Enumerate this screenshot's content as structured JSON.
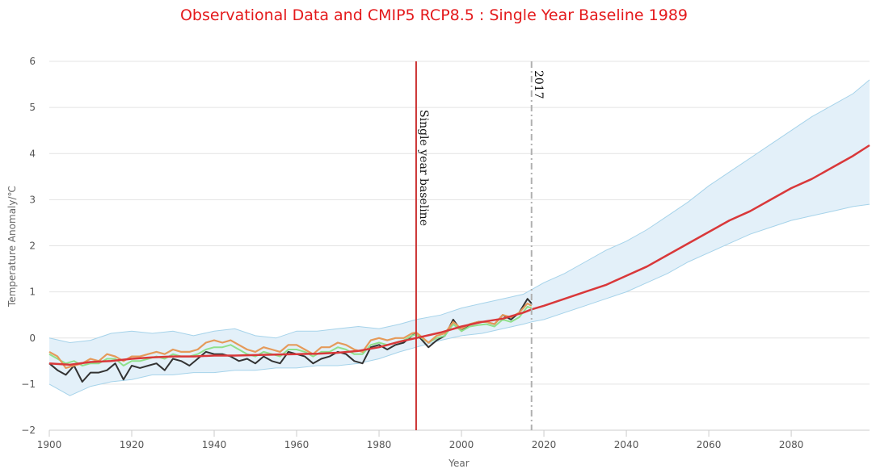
{
  "chart_data": {
    "type": "line",
    "title": "Observational Data and CMIP5 RCP8.5 : Single Year Baseline 1989",
    "xlabel": "Year",
    "ylabel": "Temperature Anomaly/℃",
    "xlim": [
      1900,
      2099
    ],
    "ylim": [
      -2,
      6
    ],
    "x_ticks": [
      "1900",
      "1920",
      "1940",
      "1960",
      "1980",
      "2000",
      "2020",
      "2040",
      "2060",
      "2080"
    ],
    "y_ticks": [
      "−2",
      "−1",
      "0",
      "1",
      "2",
      "3",
      "4",
      "5",
      "6"
    ],
    "grid": "horizontal",
    "legend": "none",
    "colors": {
      "title": "#e41a1c",
      "model_mean": "#d9383a",
      "model_range_fill": "#e3f0f9",
      "model_range_edge": "#a6d3ea",
      "obs_dark": "#333333",
      "obs_green": "#8fe08a",
      "obs_orange": "#e59a5a",
      "baseline_line": "#cc3333",
      "year_line": "#b0b0b0"
    },
    "annotations": {
      "baseline": {
        "x": 1989,
        "label": "Single year baseline"
      },
      "current_year": {
        "x": 2017,
        "label": "2017"
      }
    },
    "series": [
      {
        "role": "model-mean",
        "x": [
          1900,
          1905,
          1910,
          1915,
          1920,
          1925,
          1930,
          1935,
          1940,
          1945,
          1950,
          1955,
          1960,
          1965,
          1970,
          1975,
          1980,
          1985,
          1989,
          1995,
          2000,
          2005,
          2010,
          2015,
          2017,
          2020,
          2025,
          2030,
          2035,
          2040,
          2045,
          2050,
          2055,
          2060,
          2065,
          2070,
          2075,
          2080,
          2085,
          2090,
          2095,
          2099
        ],
        "y": [
          -0.55,
          -0.58,
          -0.52,
          -0.5,
          -0.45,
          -0.42,
          -0.4,
          -0.4,
          -0.38,
          -0.38,
          -0.37,
          -0.36,
          -0.35,
          -0.34,
          -0.32,
          -0.28,
          -0.2,
          -0.08,
          0.0,
          0.12,
          0.25,
          0.35,
          0.42,
          0.55,
          0.62,
          0.7,
          0.85,
          1.0,
          1.15,
          1.35,
          1.55,
          1.8,
          2.05,
          2.3,
          2.55,
          2.75,
          3.0,
          3.25,
          3.45,
          3.7,
          3.95,
          4.18
        ]
      },
      {
        "role": "model-range-upper",
        "x": [
          1900,
          1905,
          1910,
          1915,
          1920,
          1925,
          1930,
          1935,
          1940,
          1945,
          1950,
          1955,
          1960,
          1965,
          1970,
          1975,
          1980,
          1985,
          1989,
          1995,
          2000,
          2005,
          2010,
          2015,
          2017,
          2020,
          2025,
          2030,
          2035,
          2040,
          2045,
          2050,
          2055,
          2060,
          2065,
          2070,
          2075,
          2080,
          2085,
          2090,
          2095,
          2099
        ],
        "y": [
          0.0,
          -0.1,
          -0.05,
          0.1,
          0.15,
          0.1,
          0.15,
          0.05,
          0.15,
          0.2,
          0.05,
          0.0,
          0.15,
          0.15,
          0.2,
          0.25,
          0.2,
          0.3,
          0.4,
          0.5,
          0.65,
          0.75,
          0.85,
          0.95,
          1.05,
          1.2,
          1.4,
          1.65,
          1.9,
          2.1,
          2.35,
          2.65,
          2.95,
          3.3,
          3.6,
          3.9,
          4.2,
          4.5,
          4.8,
          5.05,
          5.3,
          5.6
        ]
      },
      {
        "role": "model-range-lower",
        "x": [
          1900,
          1905,
          1910,
          1915,
          1920,
          1925,
          1930,
          1935,
          1940,
          1945,
          1950,
          1955,
          1960,
          1965,
          1970,
          1975,
          1980,
          1985,
          1989,
          1995,
          2000,
          2005,
          2010,
          2015,
          2017,
          2020,
          2025,
          2030,
          2035,
          2040,
          2045,
          2050,
          2055,
          2060,
          2065,
          2070,
          2075,
          2080,
          2085,
          2090,
          2095,
          2099
        ],
        "y": [
          -1.0,
          -1.25,
          -1.05,
          -0.95,
          -0.9,
          -0.8,
          -0.8,
          -0.75,
          -0.75,
          -0.7,
          -0.7,
          -0.65,
          -0.65,
          -0.6,
          -0.6,
          -0.55,
          -0.45,
          -0.3,
          -0.2,
          -0.05,
          0.05,
          0.1,
          0.2,
          0.3,
          0.35,
          0.4,
          0.55,
          0.7,
          0.85,
          1.0,
          1.2,
          1.4,
          1.65,
          1.85,
          2.05,
          2.25,
          2.4,
          2.55,
          2.65,
          2.75,
          2.85,
          2.9
        ]
      },
      {
        "role": "observations-dark",
        "x": [
          1900,
          1902,
          1904,
          1906,
          1908,
          1910,
          1912,
          1914,
          1916,
          1918,
          1920,
          1922,
          1924,
          1926,
          1928,
          1930,
          1932,
          1934,
          1936,
          1938,
          1940,
          1942,
          1944,
          1946,
          1948,
          1950,
          1952,
          1954,
          1956,
          1958,
          1960,
          1962,
          1964,
          1966,
          1968,
          1970,
          1972,
          1974,
          1976,
          1978,
          1980,
          1982,
          1984,
          1986,
          1988,
          1989,
          1990,
          1992,
          1994,
          1996,
          1998,
          2000,
          2002,
          2004,
          2006,
          2008,
          2010,
          2012,
          2014,
          2016,
          2017
        ],
        "y": [
          -0.55,
          -0.7,
          -0.8,
          -0.6,
          -0.95,
          -0.75,
          -0.75,
          -0.7,
          -0.55,
          -0.9,
          -0.6,
          -0.65,
          -0.6,
          -0.55,
          -0.7,
          -0.45,
          -0.5,
          -0.6,
          -0.45,
          -0.3,
          -0.35,
          -0.35,
          -0.4,
          -0.5,
          -0.45,
          -0.55,
          -0.4,
          -0.5,
          -0.55,
          -0.3,
          -0.35,
          -0.4,
          -0.55,
          -0.45,
          -0.4,
          -0.3,
          -0.35,
          -0.5,
          -0.55,
          -0.2,
          -0.15,
          -0.25,
          -0.15,
          -0.1,
          0.05,
          0.1,
          0.0,
          -0.2,
          -0.05,
          0.05,
          0.4,
          0.15,
          0.3,
          0.35,
          0.35,
          0.3,
          0.5,
          0.4,
          0.55,
          0.85,
          0.75
        ]
      },
      {
        "role": "observations-green",
        "x": [
          1900,
          1902,
          1904,
          1906,
          1908,
          1910,
          1912,
          1914,
          1916,
          1918,
          1920,
          1922,
          1924,
          1926,
          1928,
          1930,
          1932,
          1934,
          1936,
          1938,
          1940,
          1942,
          1944,
          1946,
          1948,
          1950,
          1952,
          1954,
          1956,
          1958,
          1960,
          1962,
          1964,
          1966,
          1968,
          1970,
          1972,
          1974,
          1976,
          1978,
          1980,
          1982,
          1984,
          1986,
          1988,
          1989,
          1990,
          1992,
          1994,
          1996,
          1998,
          2000,
          2002,
          2004,
          2006,
          2008,
          2010,
          2012,
          2014,
          2016,
          2017
        ],
        "y": [
          -0.35,
          -0.45,
          -0.55,
          -0.5,
          -0.6,
          -0.55,
          -0.55,
          -0.45,
          -0.45,
          -0.6,
          -0.5,
          -0.5,
          -0.45,
          -0.4,
          -0.45,
          -0.35,
          -0.4,
          -0.4,
          -0.35,
          -0.25,
          -0.2,
          -0.2,
          -0.15,
          -0.25,
          -0.35,
          -0.4,
          -0.3,
          -0.35,
          -0.4,
          -0.25,
          -0.25,
          -0.3,
          -0.4,
          -0.3,
          -0.3,
          -0.2,
          -0.25,
          -0.35,
          -0.35,
          -0.15,
          -0.1,
          -0.15,
          -0.1,
          -0.05,
          0.05,
          0.08,
          0.02,
          -0.1,
          0.0,
          0.05,
          0.3,
          0.15,
          0.25,
          0.28,
          0.3,
          0.25,
          0.4,
          0.35,
          0.45,
          0.68,
          0.65
        ]
      },
      {
        "role": "observations-orange",
        "x": [
          1900,
          1902,
          1904,
          1906,
          1908,
          1910,
          1912,
          1914,
          1916,
          1918,
          1920,
          1922,
          1924,
          1926,
          1928,
          1930,
          1932,
          1934,
          1936,
          1938,
          1940,
          1942,
          1944,
          1946,
          1948,
          1950,
          1952,
          1954,
          1956,
          1958,
          1960,
          1962,
          1964,
          1966,
          1968,
          1970,
          1972,
          1974,
          1976,
          1978,
          1980,
          1982,
          1984,
          1986,
          1988,
          1989,
          1990,
          1992,
          1994,
          1996,
          1998,
          2000,
          2002,
          2004,
          2006,
          2008,
          2010,
          2012,
          2014,
          2016,
          2017
        ],
        "y": [
          -0.3,
          -0.4,
          -0.65,
          -0.6,
          -0.55,
          -0.45,
          -0.5,
          -0.35,
          -0.4,
          -0.5,
          -0.4,
          -0.4,
          -0.35,
          -0.3,
          -0.35,
          -0.25,
          -0.3,
          -0.3,
          -0.25,
          -0.1,
          -0.05,
          -0.1,
          -0.05,
          -0.15,
          -0.25,
          -0.3,
          -0.2,
          -0.25,
          -0.3,
          -0.15,
          -0.15,
          -0.25,
          -0.35,
          -0.2,
          -0.2,
          -0.1,
          -0.15,
          -0.25,
          -0.3,
          -0.05,
          0.0,
          -0.05,
          0.0,
          0.0,
          0.1,
          0.12,
          0.05,
          -0.1,
          0.05,
          0.1,
          0.35,
          0.2,
          0.3,
          0.35,
          0.35,
          0.3,
          0.5,
          0.45,
          0.55,
          0.75,
          0.7
        ]
      }
    ]
  }
}
